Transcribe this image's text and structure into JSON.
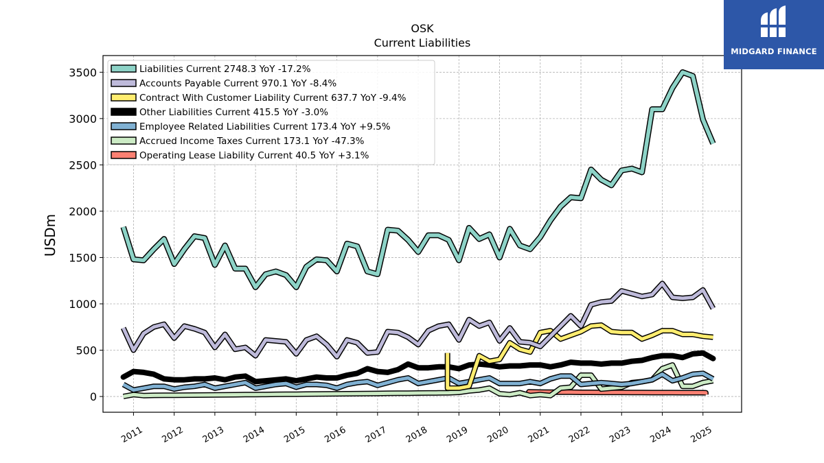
{
  "chart_data": {
    "type": "line",
    "title": "OSK",
    "subtitle": "Current  Liabilities",
    "ylabel": "USDm",
    "xlabel": "",
    "ylim": [
      -170,
      3680
    ],
    "xlim": [
      2010.25,
      2025.95
    ],
    "yticks": [
      0,
      500,
      1000,
      1500,
      2000,
      2500,
      3000,
      3500
    ],
    "xticks": [
      "2011",
      "2012",
      "2013",
      "2014",
      "2015",
      "2016",
      "2017",
      "2018",
      "2019",
      "2020",
      "2021",
      "2022",
      "2023",
      "2024",
      "2025"
    ],
    "grid": true,
    "legend_position": "top-left",
    "series": [
      {
        "name": "Liabilities Current",
        "legend_label": "Liabilities Current  2748.3 YoY -17.2%",
        "color": "#8dd3c7",
        "width": 5.5,
        "x": [
          2010.75,
          2011.0,
          2011.25,
          2011.5,
          2011.75,
          2012.0,
          2012.25,
          2012.5,
          2012.75,
          2013.0,
          2013.25,
          2013.5,
          2013.75,
          2014.0,
          2014.25,
          2014.5,
          2014.75,
          2015.0,
          2015.25,
          2015.5,
          2015.75,
          2016.0,
          2016.25,
          2016.5,
          2016.75,
          2017.0,
          2017.25,
          2017.5,
          2017.75,
          2018.0,
          2018.25,
          2018.5,
          2018.75,
          2019.0,
          2019.25,
          2019.5,
          2019.75,
          2020.0,
          2020.25,
          2020.5,
          2020.75,
          2021.0,
          2021.25,
          2021.5,
          2021.75,
          2022.0,
          2022.25,
          2022.5,
          2022.75,
          2023.0,
          2023.25,
          2023.5,
          2023.75,
          2024.0,
          2024.25,
          2024.5,
          2024.75,
          2025.0,
          2025.25
        ],
        "values": [
          1830,
          1480,
          1470,
          1590,
          1700,
          1430,
          1590,
          1730,
          1710,
          1420,
          1630,
          1380,
          1380,
          1180,
          1320,
          1350,
          1310,
          1180,
          1400,
          1480,
          1470,
          1350,
          1650,
          1620,
          1350,
          1320,
          1800,
          1790,
          1690,
          1560,
          1740,
          1740,
          1690,
          1470,
          1820,
          1700,
          1750,
          1500,
          1810,
          1630,
          1590,
          1720,
          1900,
          2050,
          2150,
          2140,
          2450,
          2340,
          2280,
          2440,
          2460,
          2420,
          3100,
          3100,
          3330,
          3500,
          3460,
          2990,
          2730
        ]
      },
      {
        "name": "Accounts Payable Current",
        "legend_label": "Accounts Payable Current  970.1 YoY -8.4%",
        "color": "#bebada",
        "width": 5,
        "x": [
          2010.75,
          2011.0,
          2011.25,
          2011.5,
          2011.75,
          2012.0,
          2012.25,
          2012.5,
          2012.75,
          2013.0,
          2013.25,
          2013.5,
          2013.75,
          2014.0,
          2014.25,
          2014.5,
          2014.75,
          2015.0,
          2015.25,
          2015.5,
          2015.75,
          2016.0,
          2016.25,
          2016.5,
          2016.75,
          2017.0,
          2017.25,
          2017.5,
          2017.75,
          2018.0,
          2018.25,
          2018.5,
          2018.75,
          2019.0,
          2019.25,
          2019.5,
          2019.75,
          2020.0,
          2020.25,
          2020.5,
          2020.75,
          2021.0,
          2021.25,
          2021.5,
          2021.75,
          2022.0,
          2022.25,
          2022.5,
          2022.75,
          2023.0,
          2023.25,
          2023.5,
          2023.75,
          2024.0,
          2024.25,
          2024.5,
          2024.75,
          2025.0,
          2025.25
        ],
        "values": [
          740,
          500,
          680,
          750,
          780,
          630,
          760,
          730,
          690,
          530,
          670,
          510,
          530,
          440,
          610,
          600,
          590,
          460,
          610,
          650,
          560,
          430,
          610,
          580,
          470,
          480,
          700,
          690,
          640,
          560,
          710,
          760,
          780,
          610,
          830,
          760,
          800,
          600,
          740,
          590,
          580,
          540,
          650,
          760,
          870,
          760,
          990,
          1020,
          1030,
          1140,
          1110,
          1080,
          1100,
          1220,
          1070,
          1060,
          1070,
          1150,
          950
        ]
      },
      {
        "name": "Contract With Customer Liability Current",
        "legend_label": "Contract With Customer Liability Current  637.7 YoY -9.4%",
        "color": "#ffed6f",
        "width": 5,
        "x": [
          2018.72,
          2018.72,
          2018.78,
          2019.0,
          2019.25,
          2019.5,
          2019.75,
          2020.0,
          2020.25,
          2020.5,
          2020.75,
          2021.0,
          2021.25,
          2021.5,
          2021.75,
          2022.0,
          2022.25,
          2022.5,
          2022.75,
          2023.0,
          2023.25,
          2023.5,
          2023.75,
          2024.0,
          2024.25,
          2024.5,
          2024.75,
          2025.0,
          2025.25
        ],
        "values": [
          470,
          90,
          90,
          90,
          110,
          440,
          380,
          400,
          580,
          510,
          480,
          690,
          710,
          620,
          660,
          700,
          760,
          770,
          700,
          690,
          690,
          620,
          660,
          710,
          710,
          670,
          670,
          650,
          640
        ]
      },
      {
        "name": "Other Liabilities Current",
        "legend_label": "Other Liabilities Current  415.5 YoY -3.0%",
        "color": "#000000",
        "width": 8,
        "x": [
          2010.75,
          2011.0,
          2011.25,
          2011.5,
          2011.75,
          2012.0,
          2012.25,
          2012.5,
          2012.75,
          2013.0,
          2013.25,
          2013.5,
          2013.75,
          2014.0,
          2014.25,
          2014.5,
          2014.75,
          2015.0,
          2015.25,
          2015.5,
          2015.75,
          2016.0,
          2016.25,
          2016.5,
          2016.75,
          2017.0,
          2017.25,
          2017.5,
          2017.75,
          2018.0,
          2018.25,
          2018.5,
          2018.75,
          2019.0,
          2019.25,
          2019.5,
          2019.75,
          2020.0,
          2020.25,
          2020.5,
          2020.75,
          2021.0,
          2021.25,
          2021.5,
          2021.75,
          2022.0,
          2022.25,
          2022.5,
          2022.75,
          2023.0,
          2023.25,
          2023.5,
          2023.75,
          2024.0,
          2024.25,
          2024.5,
          2024.75,
          2025.0,
          2025.25
        ],
        "values": [
          210,
          270,
          260,
          240,
          190,
          180,
          180,
          190,
          190,
          200,
          180,
          210,
          220,
          160,
          170,
          180,
          190,
          170,
          190,
          210,
          200,
          200,
          230,
          250,
          300,
          270,
          260,
          290,
          350,
          310,
          310,
          320,
          320,
          300,
          340,
          350,
          340,
          320,
          330,
          330,
          340,
          340,
          320,
          340,
          370,
          360,
          360,
          350,
          360,
          360,
          380,
          390,
          420,
          440,
          440,
          420,
          460,
          470,
          410
        ]
      },
      {
        "name": "Employee Related Liabilities Current",
        "legend_label": "Employee Related Liabilities Current  173.4 YoY +9.5%",
        "color": "#80b1d3",
        "width": 5,
        "x": [
          2010.75,
          2011.0,
          2011.25,
          2011.5,
          2011.75,
          2012.0,
          2012.25,
          2012.5,
          2012.75,
          2013.0,
          2013.25,
          2013.5,
          2013.75,
          2014.0,
          2014.25,
          2014.5,
          2014.75,
          2015.0,
          2015.25,
          2015.5,
          2015.75,
          2016.0,
          2016.25,
          2016.5,
          2016.75,
          2017.0,
          2017.25,
          2017.5,
          2017.75,
          2018.0,
          2018.25,
          2018.5,
          2018.75,
          2019.0,
          2019.25,
          2019.5,
          2019.75,
          2020.0,
          2020.25,
          2020.5,
          2020.75,
          2021.0,
          2021.25,
          2021.5,
          2021.75,
          2022.0,
          2022.25,
          2022.5,
          2022.75,
          2023.0,
          2023.25,
          2023.5,
          2023.75,
          2024.0,
          2024.25,
          2024.5,
          2024.75,
          2025.0,
          2025.25
        ],
        "values": [
          130,
          70,
          90,
          110,
          110,
          80,
          100,
          110,
          130,
          90,
          110,
          130,
          150,
          90,
          110,
          130,
          140,
          100,
          130,
          130,
          120,
          90,
          130,
          150,
          160,
          120,
          150,
          180,
          200,
          140,
          160,
          180,
          200,
          140,
          160,
          180,
          200,
          140,
          140,
          140,
          160,
          140,
          190,
          220,
          220,
          130,
          140,
          150,
          140,
          130,
          140,
          160,
          180,
          240,
          170,
          200,
          240,
          250,
          190
        ]
      },
      {
        "name": "Accrued Income Taxes Current",
        "legend_label": "Accrued Income Taxes Current  173.1 YoY -47.3%",
        "color": "#ccebc5",
        "width": 5,
        "x": [
          2010.75,
          2011.0,
          2011.25,
          2011.5,
          2011.75,
          2012.0,
          2012.25,
          2012.5,
          2012.75,
          2013.0,
          2013.25,
          2013.5,
          2013.75,
          2014.0,
          2014.25,
          2014.5,
          2014.75,
          2015.0,
          2015.25,
          2015.5,
          2015.75,
          2016.0,
          2016.25,
          2016.5,
          2016.75,
          2017.0,
          2017.25,
          2017.5,
          2017.75,
          2018.0,
          2018.25,
          2018.5,
          2018.75,
          2019.0,
          2019.25,
          2019.5,
          2019.75,
          2020.0,
          2020.25,
          2020.5,
          2020.75,
          2021.0,
          2021.25,
          2021.5,
          2021.75,
          2022.0,
          2022.25,
          2022.5,
          2022.75,
          2023.0,
          2023.25,
          2023.5,
          2023.75,
          2024.0,
          2024.25,
          2024.5,
          2024.75,
          2025.0,
          2025.25
        ],
        "values": [
          0,
          20,
          10,
          12,
          13,
          13,
          14,
          15,
          16,
          17,
          18,
          19,
          20,
          21,
          22,
          23,
          24,
          25,
          26,
          27,
          28,
          29,
          30,
          31,
          32,
          33,
          34,
          35,
          36,
          37,
          38,
          39,
          40,
          45,
          60,
          70,
          90,
          30,
          20,
          40,
          10,
          20,
          10,
          90,
          100,
          230,
          230,
          80,
          90,
          100,
          150,
          160,
          180,
          300,
          340,
          110,
          110,
          150,
          170
        ]
      },
      {
        "name": "Operating Lease Liability Current",
        "legend_label": "Operating Lease Liability Current  40.5 YoY +3.1%",
        "color": "#fb8072",
        "width": 5,
        "x": [
          2020.72,
          2020.72,
          2021.0,
          2021.25,
          2021.5,
          2021.75,
          2022.0,
          2022.25,
          2022.5,
          2022.75,
          2023.0,
          2023.25,
          2023.5,
          2023.75,
          2024.0,
          2024.25,
          2024.5,
          2024.75,
          2025.0,
          2025.07,
          2025.07
        ],
        "values": [
          20,
          50,
          48,
          47,
          46,
          46,
          45,
          45,
          44,
          44,
          44,
          43,
          43,
          42,
          42,
          42,
          41,
          41,
          41,
          40,
          20
        ]
      }
    ]
  },
  "brand": {
    "name": "MIDGARD FINANCE",
    "logo_icon": "midgard-logo-icon",
    "color": "#2d57a8"
  }
}
